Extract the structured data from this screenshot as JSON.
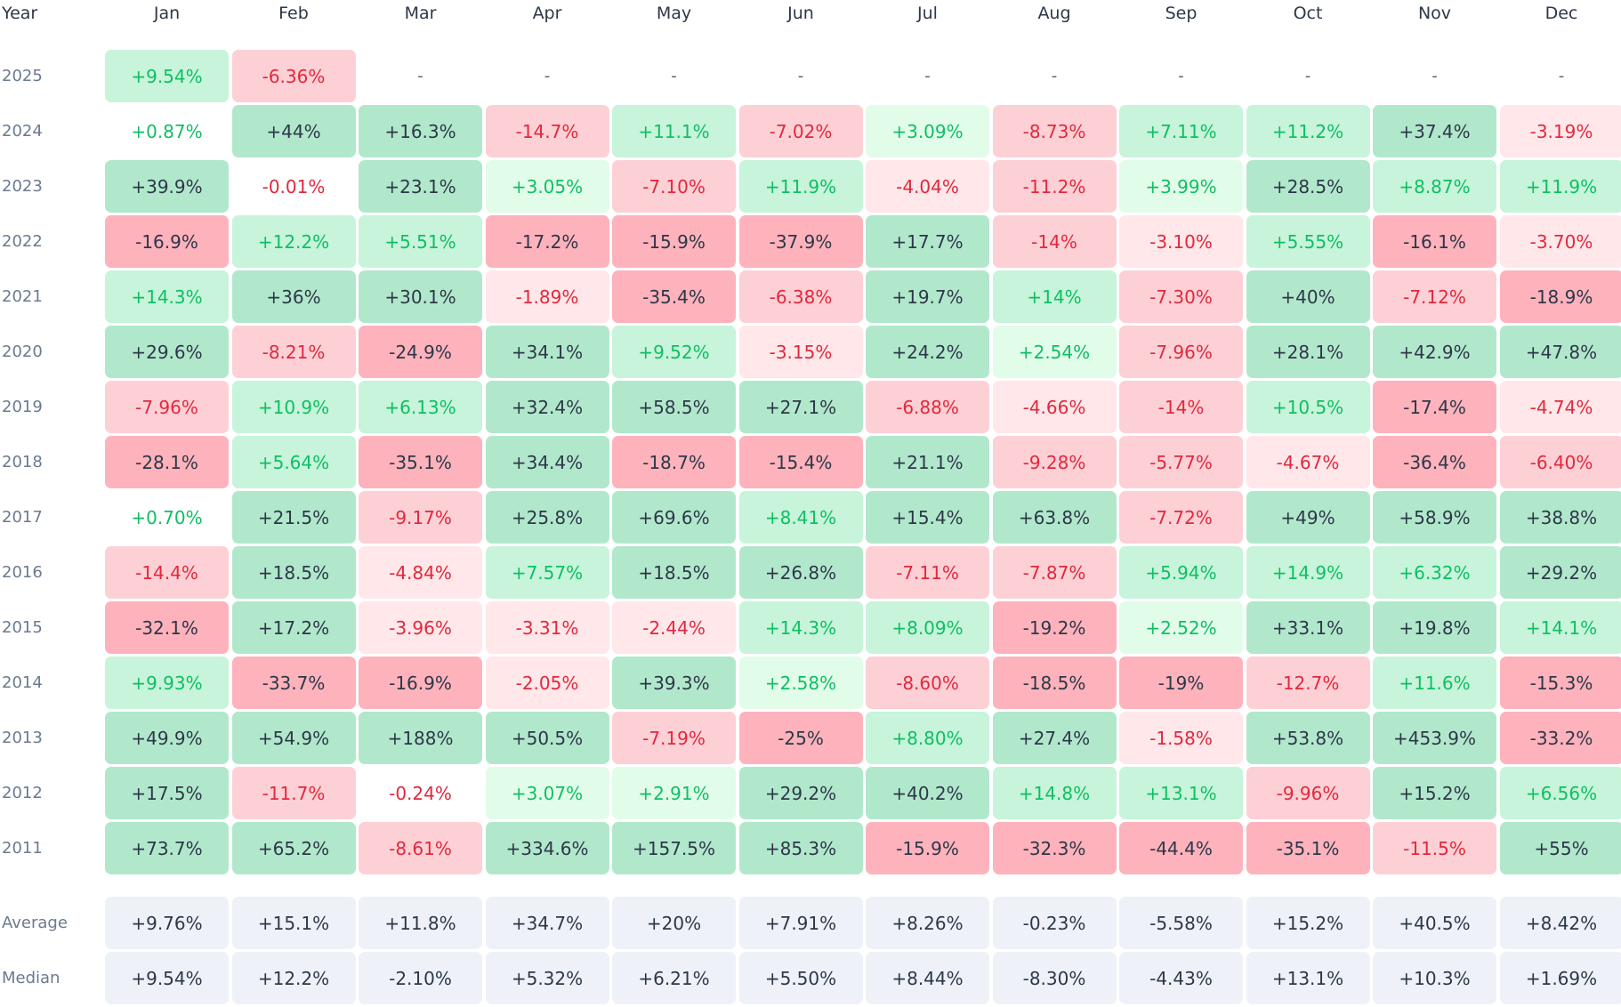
{
  "colors": {
    "strong_green_bg": "#b1e8cc",
    "medium_green_bg": "#c7f4da",
    "light_green_bg": "#e2fcea",
    "strong_red_bg": "#fdb2bc",
    "medium_red_bg": "#fdd0d6",
    "light_red_bg": "#ffe7ea",
    "green_text": "#0fbf63",
    "red_text": "#e2283c",
    "dark_text": "#2d3748",
    "summary_bg": "#eef2f8"
  },
  "chart_data": {
    "type": "heatmap",
    "corner_label": "Year",
    "columns": [
      "Jan",
      "Feb",
      "Mar",
      "Apr",
      "May",
      "Jun",
      "Jul",
      "Aug",
      "Sep",
      "Oct",
      "Nov",
      "Dec"
    ],
    "rows": [
      {
        "year": "2025",
        "cells": [
          "+9.54%",
          "-6.36%",
          "-",
          "-",
          "-",
          "-",
          "-",
          "-",
          "-",
          "-",
          "-",
          "-"
        ]
      },
      {
        "year": "2024",
        "cells": [
          "+0.87%",
          "+44%",
          "+16.3%",
          "-14.7%",
          "+11.1%",
          "-7.02%",
          "+3.09%",
          "-8.73%",
          "+7.11%",
          "+11.2%",
          "+37.4%",
          "-3.19%"
        ]
      },
      {
        "year": "2023",
        "cells": [
          "+39.9%",
          "-0.01%",
          "+23.1%",
          "+3.05%",
          "-7.10%",
          "+11.9%",
          "-4.04%",
          "-11.2%",
          "+3.99%",
          "+28.5%",
          "+8.87%",
          "+11.9%"
        ]
      },
      {
        "year": "2022",
        "cells": [
          "-16.9%",
          "+12.2%",
          "+5.51%",
          "-17.2%",
          "-15.9%",
          "-37.9%",
          "+17.7%",
          "-14%",
          "-3.10%",
          "+5.55%",
          "-16.1%",
          "-3.70%"
        ]
      },
      {
        "year": "2021",
        "cells": [
          "+14.3%",
          "+36%",
          "+30.1%",
          "-1.89%",
          "-35.4%",
          "-6.38%",
          "+19.7%",
          "+14%",
          "-7.30%",
          "+40%",
          "-7.12%",
          "-18.9%"
        ]
      },
      {
        "year": "2020",
        "cells": [
          "+29.6%",
          "-8.21%",
          "-24.9%",
          "+34.1%",
          "+9.52%",
          "-3.15%",
          "+24.2%",
          "+2.54%",
          "-7.96%",
          "+28.1%",
          "+42.9%",
          "+47.8%"
        ]
      },
      {
        "year": "2019",
        "cells": [
          "-7.96%",
          "+10.9%",
          "+6.13%",
          "+32.4%",
          "+58.5%",
          "+27.1%",
          "-6.88%",
          "-4.66%",
          "-14%",
          "+10.5%",
          "-17.4%",
          "-4.74%"
        ]
      },
      {
        "year": "2018",
        "cells": [
          "-28.1%",
          "+5.64%",
          "-35.1%",
          "+34.4%",
          "-18.7%",
          "-15.4%",
          "+21.1%",
          "-9.28%",
          "-5.77%",
          "-4.67%",
          "-36.4%",
          "-6.40%"
        ]
      },
      {
        "year": "2017",
        "cells": [
          "+0.70%",
          "+21.5%",
          "-9.17%",
          "+25.8%",
          "+69.6%",
          "+8.41%",
          "+15.4%",
          "+63.8%",
          "-7.72%",
          "+49%",
          "+58.9%",
          "+38.8%"
        ]
      },
      {
        "year": "2016",
        "cells": [
          "-14.4%",
          "+18.5%",
          "-4.84%",
          "+7.57%",
          "+18.5%",
          "+26.8%",
          "-7.11%",
          "-7.87%",
          "+5.94%",
          "+14.9%",
          "+6.32%",
          "+29.2%"
        ]
      },
      {
        "year": "2015",
        "cells": [
          "-32.1%",
          "+17.2%",
          "-3.96%",
          "-3.31%",
          "-2.44%",
          "+14.3%",
          "+8.09%",
          "-19.2%",
          "+2.52%",
          "+33.1%",
          "+19.8%",
          "+14.1%"
        ]
      },
      {
        "year": "2014",
        "cells": [
          "+9.93%",
          "-33.7%",
          "-16.9%",
          "-2.05%",
          "+39.3%",
          "+2.58%",
          "-8.60%",
          "-18.5%",
          "-19%",
          "-12.7%",
          "+11.6%",
          "-15.3%"
        ]
      },
      {
        "year": "2013",
        "cells": [
          "+49.9%",
          "+54.9%",
          "+188%",
          "+50.5%",
          "-7.19%",
          "-25%",
          "+8.80%",
          "+27.4%",
          "-1.58%",
          "+53.8%",
          "+453.9%",
          "-33.2%"
        ]
      },
      {
        "year": "2012",
        "cells": [
          "+17.5%",
          "-11.7%",
          "-0.24%",
          "+3.07%",
          "+2.91%",
          "+29.2%",
          "+40.2%",
          "+14.8%",
          "+13.1%",
          "-9.96%",
          "+15.2%",
          "+6.56%"
        ]
      },
      {
        "year": "2011",
        "cells": [
          "+73.7%",
          "+65.2%",
          "-8.61%",
          "+334.6%",
          "+157.5%",
          "+85.3%",
          "-15.9%",
          "-32.3%",
          "-44.4%",
          "-35.1%",
          "-11.5%",
          "+55%"
        ]
      }
    ],
    "summary_rows": [
      {
        "label": "Average",
        "cells": [
          "+9.76%",
          "+15.1%",
          "+11.8%",
          "+34.7%",
          "+20%",
          "+7.91%",
          "+8.26%",
          "-0.23%",
          "-5.58%",
          "+15.2%",
          "+40.5%",
          "+8.42%"
        ]
      },
      {
        "label": "Median",
        "cells": [
          "+9.54%",
          "+12.2%",
          "-2.10%",
          "+5.32%",
          "+6.21%",
          "+5.50%",
          "+8.44%",
          "-8.30%",
          "-4.43%",
          "+13.1%",
          "+10.3%",
          "+1.69%"
        ]
      }
    ]
  }
}
